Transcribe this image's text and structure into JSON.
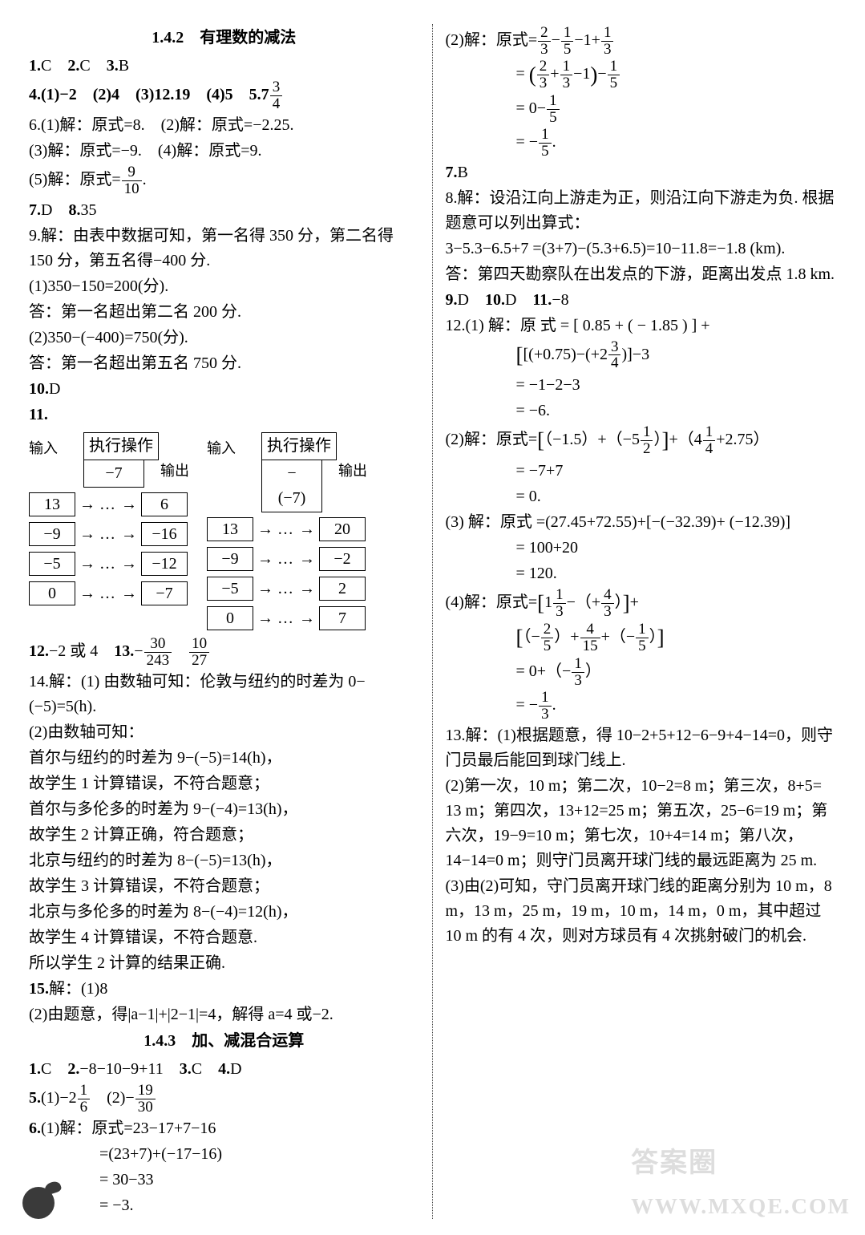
{
  "left": {
    "title142": "1.4.2　有理数的减法",
    "l1": "1.C　2.C　3.B",
    "l2a": "4.(1)−2　(2)4　(3)12.19　(4)5　5.7",
    "l2_frac": {
      "n": "3",
      "d": "4"
    },
    "l3": "6.(1)解：原式=8.　(2)解：原式=−2.25.",
    "l4": "(3)解：原式=−9.　(4)解：原式=9.",
    "l5a": "(5)解：原式=",
    "l5_frac": {
      "n": "9",
      "d": "10"
    },
    "l5b": ".",
    "l6": "7.D　8.35",
    "l7": "9.解：由表中数据可知，第一名得 350 分，第二名得 150 分，第五名得−400 分.",
    "l8": "(1)350−150=200(分).",
    "l9": "答：第一名超出第二名 200 分.",
    "l10": "(2)350−(−400)=750(分).",
    "l11": "答：第一名超出第五名 750 分.",
    "l12": "10.D",
    "l13": "11.",
    "flow": {
      "head": "执行操作",
      "subL": "−7",
      "subR": "−(−7)",
      "inLabel": "输入",
      "outLabel": "输出",
      "left": {
        "in": [
          "13",
          "−9",
          "−5",
          "0"
        ],
        "out": [
          "6",
          "−16",
          "−12",
          "−7"
        ]
      },
      "right": {
        "in": [
          "13",
          "−9",
          "−5",
          "0"
        ],
        "out": [
          "20",
          "−2",
          "2",
          "7"
        ]
      }
    },
    "l14a": "12.−2 或 4　13.−",
    "l14_f1": {
      "n": "30",
      "d": "243"
    },
    "l14b": "　",
    "l14_f2": {
      "n": "10",
      "d": "27"
    },
    "l15": "14.解：(1) 由数轴可知：伦敦与纽约的时差为 0−(−5)=5(h).",
    "l16": "(2)由数轴可知：",
    "l17": "首尔与纽约的时差为 9−(−5)=14(h)，",
    "l18": "故学生 1 计算错误，不符合题意；",
    "l19": "首尔与多伦多的时差为 9−(−4)=13(h)，",
    "l20": "故学生 2 计算正确，符合题意；",
    "l21": "北京与纽约的时差为 8−(−5)=13(h)，",
    "l22": "故学生 3 计算错误，不符合题意；",
    "l23": "北京与多伦多的时差为 8−(−4)=12(h)，",
    "l24": "故学生 4 计算错误，不符合题意.",
    "l25": "所以学生 2 计算的结果正确.",
    "l26": "15.解：(1)8",
    "l27": "(2)由题意，得|a−1|+|2−1|=4，解得 a=4 或−2.",
    "title143": "1.4.3　加、减混合运算",
    "l28": "1.C　2.−8−10−9+11　3.C　4.D",
    "l29a": "5.(1)−2",
    "l29_f1": {
      "n": "1",
      "d": "6"
    },
    "l29b": "　(2)−",
    "l29_f2": {
      "n": "19",
      "d": "30"
    },
    "l30": "6.(1)解：原式=23−17+7−16",
    "l31": "=(23+7)+(−17−16)",
    "l32": "= 30−33",
    "l33": "= −3."
  },
  "right": {
    "r1a": "(2)解：原式=",
    "r1_f1": {
      "n": "2",
      "d": "3"
    },
    "r1b": "−",
    "r1_f2": {
      "n": "1",
      "d": "5"
    },
    "r1c": "−1+",
    "r1_f3": {
      "n": "1",
      "d": "3"
    },
    "r2a": "=",
    "r2_f1": {
      "n": "2",
      "d": "3"
    },
    "r2b": "+",
    "r2_f2": {
      "n": "1",
      "d": "3"
    },
    "r2c": "−1",
    "r2d": "−",
    "r2_f3": {
      "n": "1",
      "d": "5"
    },
    "r3a": "= 0−",
    "r3_f1": {
      "n": "1",
      "d": "5"
    },
    "r4a": "= −",
    "r4_f1": {
      "n": "1",
      "d": "5"
    },
    "r4b": ".",
    "r5": "7.B",
    "r6": "8.解：设沿江向上游走为正，则沿江向下游走为负. 根据题意可以列出算式：",
    "r7": "3−5.3−6.5+7 =(3+7)−(5.3+6.5)=10−11.8=−1.8 (km).",
    "r8": "答：第四天勘察队在出发点的下游，距离出发点 1.8 km.",
    "r9": "9.D　10.D　11.−8",
    "r10": "12.(1) 解：原 式 = [ 0.85 + ( − 1.85 ) ] +",
    "r10b_pre": "[(+0.75)−(+2",
    "r10b_f": {
      "n": "3",
      "d": "4"
    },
    "r10b_post": ")]−3",
    "r11": "= −1−2−3",
    "r12": "= −6.",
    "r13a": "(2)解：原式=",
    "r13b": "（−1.5）+（−5",
    "r13_f1": {
      "n": "1",
      "d": "2"
    },
    "r13c": "）",
    "r13d": "+（4",
    "r13_f2": {
      "n": "1",
      "d": "4"
    },
    "r13e": "+2.75）",
    "r14": "= −7+7",
    "r15": "= 0.",
    "r16": "(3) 解：原式 =(27.45+72.55)+[−(−32.39)+ (−12.39)]",
    "r17": "= 100+20",
    "r18": "= 120.",
    "r19a": "(4)解：原式=",
    "r19b": "1",
    "r19_f1": {
      "n": "1",
      "d": "3"
    },
    "r19c": "−（+",
    "r19_f2": {
      "n": "4",
      "d": "3"
    },
    "r19d": "）",
    "r19e": "+",
    "r20a": "（−",
    "r20_f1": {
      "n": "2",
      "d": "5"
    },
    "r20b": "）+",
    "r20_f2": {
      "n": "4",
      "d": "15"
    },
    "r20c": "+（−",
    "r20_f3": {
      "n": "1",
      "d": "5"
    },
    "r20d": "）",
    "r21a": "= 0+（−",
    "r21_f1": {
      "n": "1",
      "d": "3"
    },
    "r21b": "）",
    "r22a": "= −",
    "r22_f1": {
      "n": "1",
      "d": "3"
    },
    "r22b": ".",
    "r23": "13.解：(1)根据题意，得 10−2+5+12−6−9+4−14=0，则守门员最后能回到球门线上.",
    "r24": "(2)第一次，10 m；第二次，10−2=8 m；第三次，8+5= 13 m；第四次，13+12=25 m；第五次，25−6=19 m；第六次，19−9=10 m；第七次，10+4=14 m；第八次，14−14=0 m；则守门员离开球门线的最远距离为 25 m.",
    "r25": "(3)由(2)可知，守门员离开球门线的距离分别为 10 m，8 m，13 m，25 m，19 m，10 m，14 m，0 m，其中超过 10 m 的有 4 次，则对方球员有 4 次挑射破门的机会."
  },
  "watermark": "答案圈",
  "wm_sub": "WWW.MXQE.COM"
}
